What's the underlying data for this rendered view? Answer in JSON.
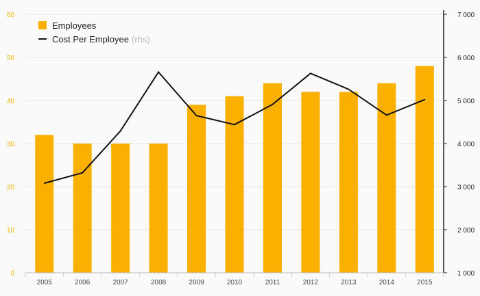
{
  "chart_data": {
    "type": "bar",
    "categories": [
      "2005",
      "2006",
      "2007",
      "2008",
      "2009",
      "2010",
      "2011",
      "2012",
      "2013",
      "2014",
      "2015"
    ],
    "series": [
      {
        "name": "Employees",
        "kind": "bar",
        "axis": "left",
        "color": "#f9b000",
        "values": [
          32,
          30,
          30,
          30,
          39,
          41,
          44,
          42,
          42,
          44,
          48
        ]
      },
      {
        "name": "Cost Per Employee",
        "kind": "line",
        "axis": "right",
        "color": "#111111",
        "values": [
          3080,
          3320,
          4290,
          5660,
          4650,
          4440,
          4910,
          5630,
          5260,
          4660,
          5020
        ]
      }
    ],
    "y_left": {
      "min": 0,
      "max": 60,
      "ticks": [
        "0",
        "10",
        "20",
        "30",
        "40",
        "50",
        "60"
      ],
      "tick_values": [
        0,
        10,
        20,
        30,
        40,
        50,
        60
      ],
      "color": "#f9b000"
    },
    "y_right": {
      "min": 1000,
      "max": 7000,
      "ticks": [
        "1 000",
        "2 000",
        "3 000",
        "4 000",
        "5 000",
        "6 000",
        "7 000"
      ],
      "tick_values": [
        1000,
        2000,
        3000,
        4000,
        5000,
        6000,
        7000
      ],
      "color": "#111111"
    },
    "legend": {
      "position": "top-left",
      "rhs_suffix": "(rhs)"
    },
    "grid": true
  }
}
